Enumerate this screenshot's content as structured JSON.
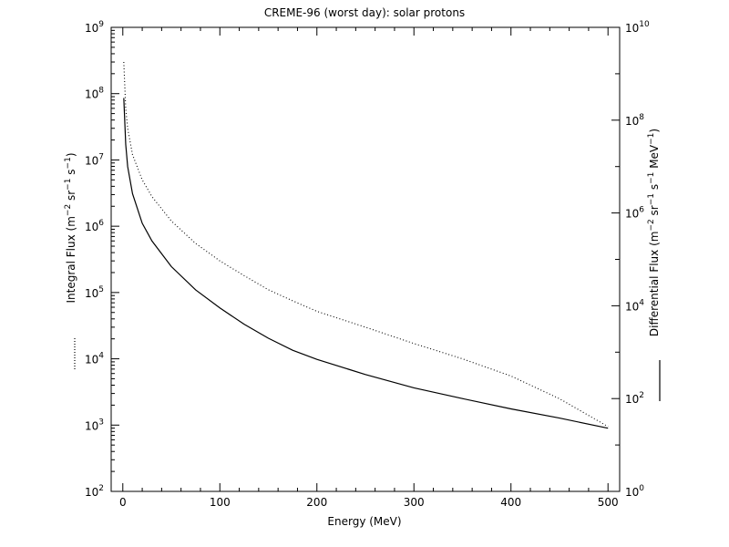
{
  "chart_data": {
    "type": "line",
    "title": "CREME-96 (worst day): solar protons",
    "xlabel": "Energy (MeV)",
    "ylabel_left": "Integral Flux (m^-2 sr^-1 s^-1)",
    "ylabel_right": "Differential Flux (m^-2 sr^-1 s^-1 MeV^-1)",
    "xlim": [
      -12,
      512
    ],
    "ylim_left": [
      100,
      1000000000
    ],
    "ylim_right": [
      1,
      10000000000
    ],
    "y_scale": "log",
    "grid": false,
    "x_ticks": [
      "0",
      "100",
      "200",
      "300",
      "400",
      "500"
    ],
    "y_left_ticks": [
      {
        "base": "10",
        "exp": "2"
      },
      {
        "base": "10",
        "exp": "3"
      },
      {
        "base": "10",
        "exp": "4"
      },
      {
        "base": "10",
        "exp": "5"
      },
      {
        "base": "10",
        "exp": "6"
      },
      {
        "base": "10",
        "exp": "7"
      },
      {
        "base": "10",
        "exp": "8"
      },
      {
        "base": "10",
        "exp": "9"
      }
    ],
    "y_right_ticks": [
      {
        "base": "10",
        "exp": "0"
      },
      {
        "base": "10",
        "exp": "2"
      },
      {
        "base": "10",
        "exp": "4"
      },
      {
        "base": "10",
        "exp": "6"
      },
      {
        "base": "10",
        "exp": "8"
      },
      {
        "base": "10",
        "exp": "10"
      }
    ],
    "series": [
      {
        "name": "Integral Flux",
        "style": "dotted",
        "axis": "left",
        "x": [
          1,
          3,
          5,
          10,
          20,
          30,
          50,
          75,
          100,
          125,
          150,
          175,
          200,
          250,
          300,
          350,
          400,
          450,
          500
        ],
        "y": [
          300000000,
          60000000,
          30000000,
          12000000,
          5000000,
          2800000,
          1200000,
          550000,
          300000,
          180000,
          110000,
          75000,
          52000,
          30000,
          17000,
          10000,
          5500,
          2500,
          950
        ]
      },
      {
        "name": "Differential Flux",
        "style": "solid",
        "axis": "right",
        "x": [
          1,
          3,
          5,
          10,
          20,
          30,
          50,
          75,
          100,
          125,
          150,
          175,
          200,
          250,
          300,
          350,
          400,
          450,
          500
        ],
        "y": [
          300000000,
          30000000,
          10000000,
          2600000,
          600000,
          250000,
          70000,
          22000,
          9000,
          4000,
          2000,
          1100,
          700,
          330,
          170,
          100,
          60,
          38,
          23
        ]
      }
    ]
  }
}
